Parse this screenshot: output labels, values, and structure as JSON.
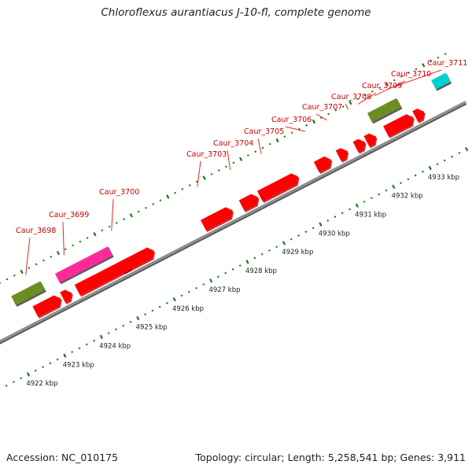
{
  "title": "Chloroflexus aurantiacus J-10-fl, complete genome",
  "footer": {
    "accession": "Accession: NC_010175",
    "summary": "Topology: circular; Length: 5,258,541 bp; Genes: 3,911"
  },
  "colors": {
    "gene": "#ff0000",
    "gene_dark": "#b80000",
    "rna": "#6b8e23",
    "highlight": "#ff2a9a",
    "cyan": "#00d0d0",
    "backbone": "#909090",
    "tick": "#1a7a1a",
    "label": "#cc0000"
  },
  "chart_data": {
    "type": "genome-map",
    "range_kbp": [
      4921.4,
      4934.2
    ],
    "scale_ticks": [
      {
        "kbp": 4922,
        "label": "4922 kbp"
      },
      {
        "kbp": 4923,
        "label": "4923 kbp"
      },
      {
        "kbp": 4924,
        "label": "4924 kbp"
      },
      {
        "kbp": 4925,
        "label": "4925 kbp"
      },
      {
        "kbp": 4926,
        "label": "4926 kbp"
      },
      {
        "kbp": 4927,
        "label": "4927 kbp"
      },
      {
        "kbp": 4928,
        "label": "4928 kbp"
      },
      {
        "kbp": 4929,
        "label": "4929 kbp"
      },
      {
        "kbp": 4930,
        "label": "4930 kbp"
      },
      {
        "kbp": 4931,
        "label": "4931 kbp"
      },
      {
        "kbp": 4932,
        "label": "4932 kbp"
      },
      {
        "kbp": 4933,
        "label": "4933 kbp"
      }
    ],
    "labels": [
      {
        "name": "Caur_3698",
        "kbp": 4923.05
      },
      {
        "name": "Caur_3699",
        "kbp": 4924.1
      },
      {
        "name": "Caur_3700",
        "kbp": 4925.4
      },
      {
        "name": "Caur_3703",
        "kbp": 4927.75
      },
      {
        "name": "Caur_3704",
        "kbp": 4928.65
      },
      {
        "name": "Caur_3705",
        "kbp": 4929.5
      },
      {
        "name": "Caur_3706",
        "kbp": 4930.7
      },
      {
        "name": "Caur_3707",
        "kbp": 4931.3
      },
      {
        "name": "Caur_3708",
        "kbp": 4931.88
      },
      {
        "name": "Caur_3709",
        "kbp": 4932.15
      },
      {
        "name": "Caur_3710",
        "kbp": 4932.6
      },
      {
        "name": "Caur_3711",
        "kbp": 4932.95
      }
    ],
    "features": [
      {
        "start": 4921.4,
        "end": 4921.65,
        "lane": "cds_rev",
        "kind": "gene",
        "arrow": "left"
      },
      {
        "start": 4922.85,
        "end": 4923.55,
        "lane": "cds_rev",
        "kind": "gene",
        "arrow": "right"
      },
      {
        "start": 4923.6,
        "end": 4923.85,
        "lane": "cds_rev",
        "kind": "gene",
        "arrow": "right"
      },
      {
        "start": 4922.5,
        "end": 4923.3,
        "lane": "rna",
        "kind": "rna",
        "arrow": "none"
      },
      {
        "start": 4924.0,
        "end": 4925.5,
        "lane": "cds_rev",
        "kind": "gene",
        "arrow": "right"
      },
      {
        "start": 4923.7,
        "end": 4925.15,
        "lane": "highlight",
        "kind": "highlight",
        "arrow": "none"
      },
      {
        "start": 4925.2,
        "end": 4926.1,
        "lane": "cds_fwd",
        "kind": "gene",
        "arrow": "right"
      },
      {
        "start": 4927.45,
        "end": 4928.25,
        "lane": "cds_fwd",
        "kind": "gene",
        "arrow": "right"
      },
      {
        "start": 4928.5,
        "end": 4928.95,
        "lane": "cds_fwd",
        "kind": "gene",
        "arrow": "right"
      },
      {
        "start": 4929.0,
        "end": 4930.05,
        "lane": "cds_fwd",
        "kind": "gene",
        "arrow": "right"
      },
      {
        "start": 4930.55,
        "end": 4930.95,
        "lane": "cds_fwd",
        "kind": "gene",
        "arrow": "right"
      },
      {
        "start": 4931.15,
        "end": 4931.4,
        "lane": "cds_fwd",
        "kind": "gene",
        "arrow": "right"
      },
      {
        "start": 4931.62,
        "end": 4931.88,
        "lane": "cds_fwd",
        "kind": "gene",
        "arrow": "right"
      },
      {
        "start": 4931.92,
        "end": 4932.18,
        "lane": "cds_fwd",
        "kind": "gene",
        "arrow": "right"
      },
      {
        "start": 4932.45,
        "end": 4933.2,
        "lane": "cds_fwd",
        "kind": "gene",
        "arrow": "right"
      },
      {
        "start": 4933.25,
        "end": 4933.5,
        "lane": "cds_fwd",
        "kind": "gene",
        "arrow": "right"
      },
      {
        "start": 4932.25,
        "end": 4933.05,
        "lane": "rna",
        "kind": "rna",
        "arrow": "none"
      },
      {
        "start": 4934.0,
        "end": 4934.4,
        "lane": "rna",
        "kind": "cyan",
        "arrow": "none"
      }
    ]
  }
}
